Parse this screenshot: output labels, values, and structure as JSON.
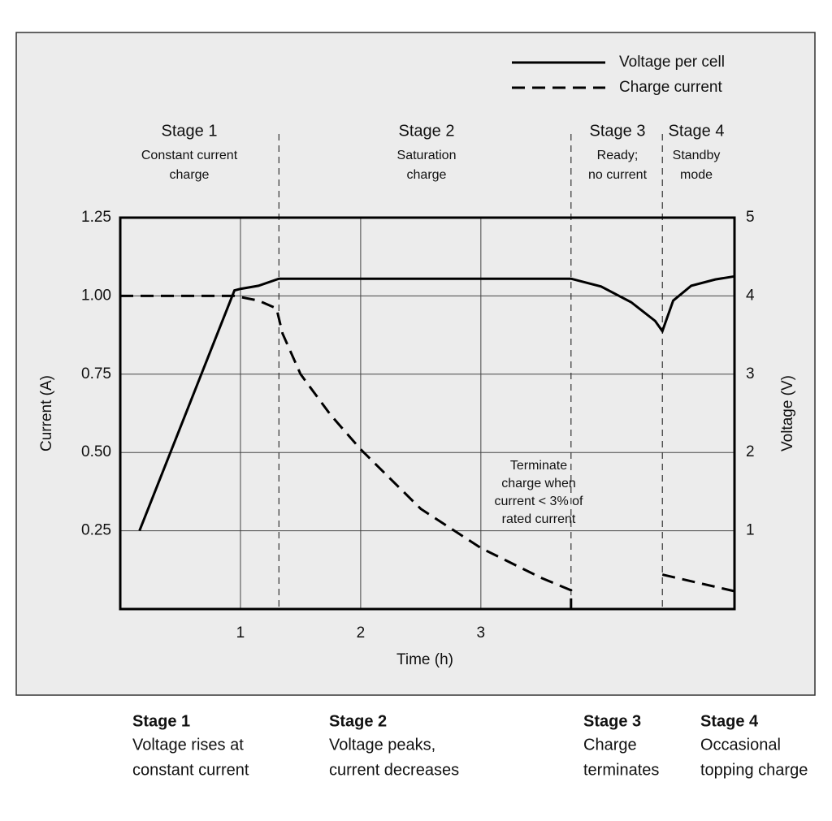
{
  "chart_data": {
    "type": "line",
    "xlabel": "Time (h)",
    "ylabel": "Current (A)",
    "y2label": "Voltage (V)",
    "xlim": [
      0,
      5.11
    ],
    "xticks": [
      1,
      2,
      3
    ],
    "ylim": [
      0,
      1.25
    ],
    "yticks": [
      {
        "value": 0.25,
        "label": "0.25"
      },
      {
        "value": 0.5,
        "label": "0.50"
      },
      {
        "value": 0.75,
        "label": "0.75"
      },
      {
        "value": 1,
        "label": "1.00"
      },
      {
        "value": 1.25,
        "label": "1.25"
      }
    ],
    "y2lim": [
      0,
      5
    ],
    "y2ticks": [
      1,
      2,
      3,
      4,
      5
    ],
    "grid": true,
    "stage_boundaries": [
      1.32,
      3.75,
      4.51
    ],
    "stages": [
      {
        "title": "Stage 1",
        "lines": [
          "Constant current",
          "charge"
        ]
      },
      {
        "title": "Stage 2",
        "lines": [
          "Saturation",
          "charge"
        ]
      },
      {
        "title": "Stage 3",
        "lines": [
          "Ready;",
          "no current"
        ]
      },
      {
        "title": "Stage 4",
        "lines": [
          "Standby",
          "mode"
        ]
      }
    ],
    "annotation": [
      "Terminate",
      "charge when",
      "current < 3% of",
      "rated current"
    ],
    "series": [
      {
        "name": "Voltage per cell",
        "color": "#000000",
        "style": "solid",
        "axis": "y2",
        "x": [
          0.16,
          0.95,
          1.0,
          1.15,
          1.32,
          3.75,
          4.0,
          4.25,
          4.45,
          4.51,
          4.6,
          4.75,
          4.95,
          5.11
        ],
        "values": [
          1.0,
          4.07,
          4.09,
          4.13,
          4.22,
          4.22,
          4.12,
          3.92,
          3.68,
          3.55,
          3.94,
          4.13,
          4.21,
          4.25
        ]
      },
      {
        "name": "Charge current",
        "color": "#000000",
        "style": "dashed",
        "x": [
          0,
          0.95,
          1.15,
          1.3,
          1.35,
          1.5,
          1.75,
          2.0,
          2.5,
          3.0,
          3.5,
          3.75,
          3.75,
          4.0,
          4.51,
          5.11
        ],
        "values": [
          1.0,
          1.0,
          0.985,
          0.96,
          0.88,
          0.75,
          0.62,
          0.51,
          0.32,
          0.195,
          0.1,
          0.06,
          0,
          null,
          0.11,
          0.057
        ]
      }
    ],
    "notes": [
      {
        "title": "Stage 1",
        "lines": [
          "Voltage rises at",
          "constant current"
        ]
      },
      {
        "title": "Stage 2",
        "lines": [
          "Voltage peaks,",
          "current decreases"
        ]
      },
      {
        "title": "Stage 3",
        "lines": [
          "Charge",
          "terminates"
        ]
      },
      {
        "title": "Stage 4",
        "lines": [
          "Occasional",
          "topping charge"
        ]
      }
    ]
  }
}
